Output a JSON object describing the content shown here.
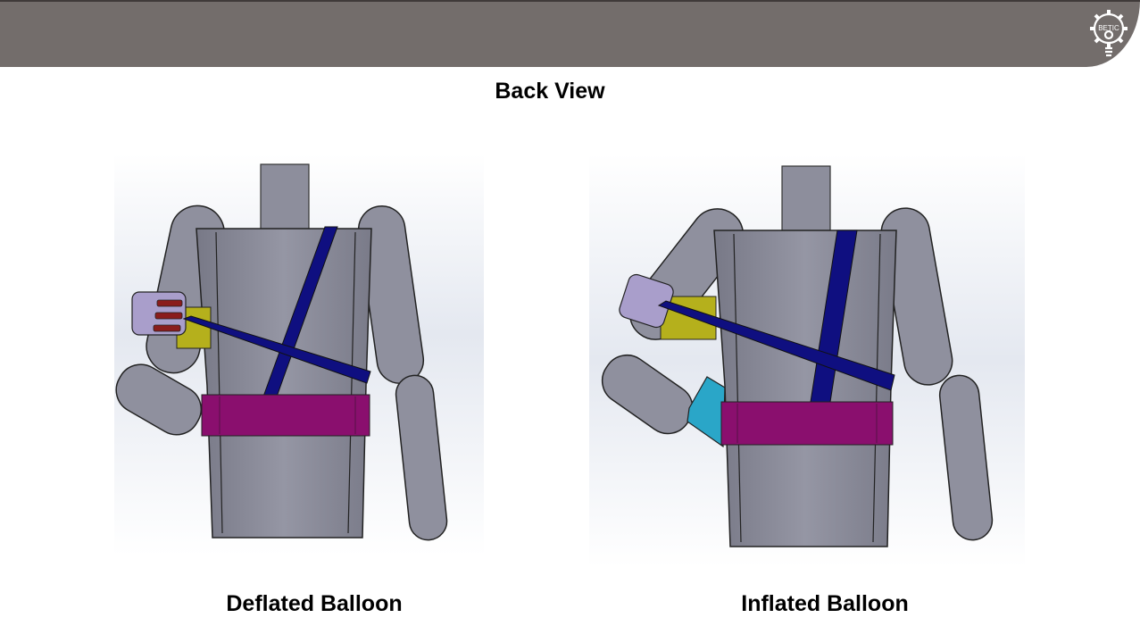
{
  "logo": {
    "text": "BETIC",
    "icon": "gear-lightbulb-icon"
  },
  "title": "Back View",
  "figures": [
    {
      "caption": "Deflated Balloon"
    },
    {
      "caption": "Inflated Balloon"
    }
  ],
  "colors": {
    "header": "#736d6b",
    "body": "#8f909e",
    "strap": "#0f0f80",
    "belt": "#8a0f6e",
    "cuff": "#a99ecb",
    "yellow_block": "#b5b01c",
    "balloon": "#2aa6c8"
  }
}
